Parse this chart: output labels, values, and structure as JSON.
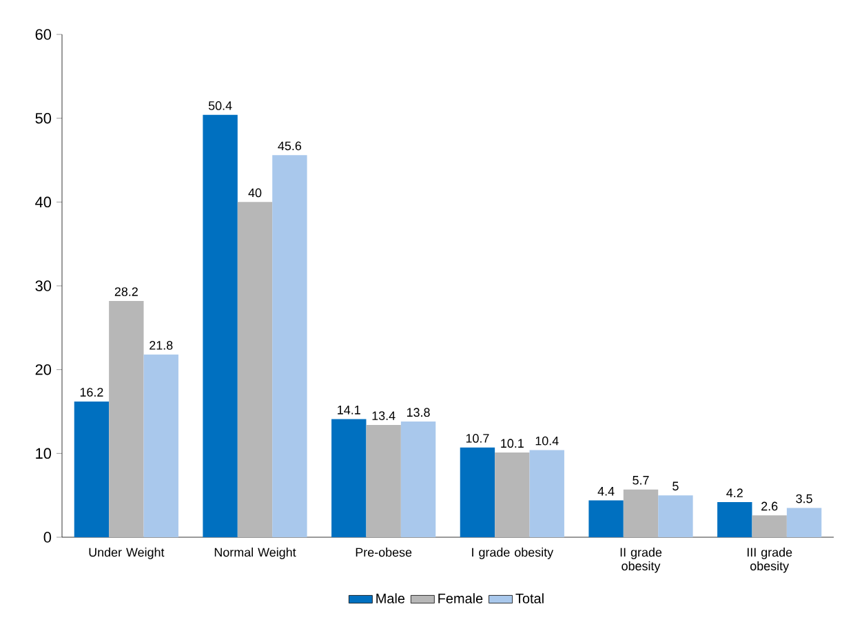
{
  "chart_data": {
    "type": "bar",
    "categories": [
      "Under Weight",
      "Normal Weight",
      "Pre-obese",
      "I grade obesity",
      "II grade obesity",
      "III grade obesity"
    ],
    "series": [
      {
        "name": "Male",
        "color": "#0070c0",
        "values": [
          16.2,
          50.4,
          14.1,
          10.7,
          4.4,
          4.2
        ]
      },
      {
        "name": "Female",
        "color": "#b7b7b7",
        "values": [
          28.2,
          40,
          13.4,
          10.1,
          5.7,
          2.6
        ]
      },
      {
        "name": "Total",
        "color": "#a9c8ec",
        "values": [
          21.8,
          45.6,
          13.8,
          10.4,
          5,
          3.5
        ]
      }
    ],
    "ylim": [
      0,
      60
    ],
    "yticks": [
      0,
      10,
      20,
      30,
      40,
      50,
      60
    ],
    "data_labels": true,
    "legend": "bottom",
    "grid": false
  }
}
